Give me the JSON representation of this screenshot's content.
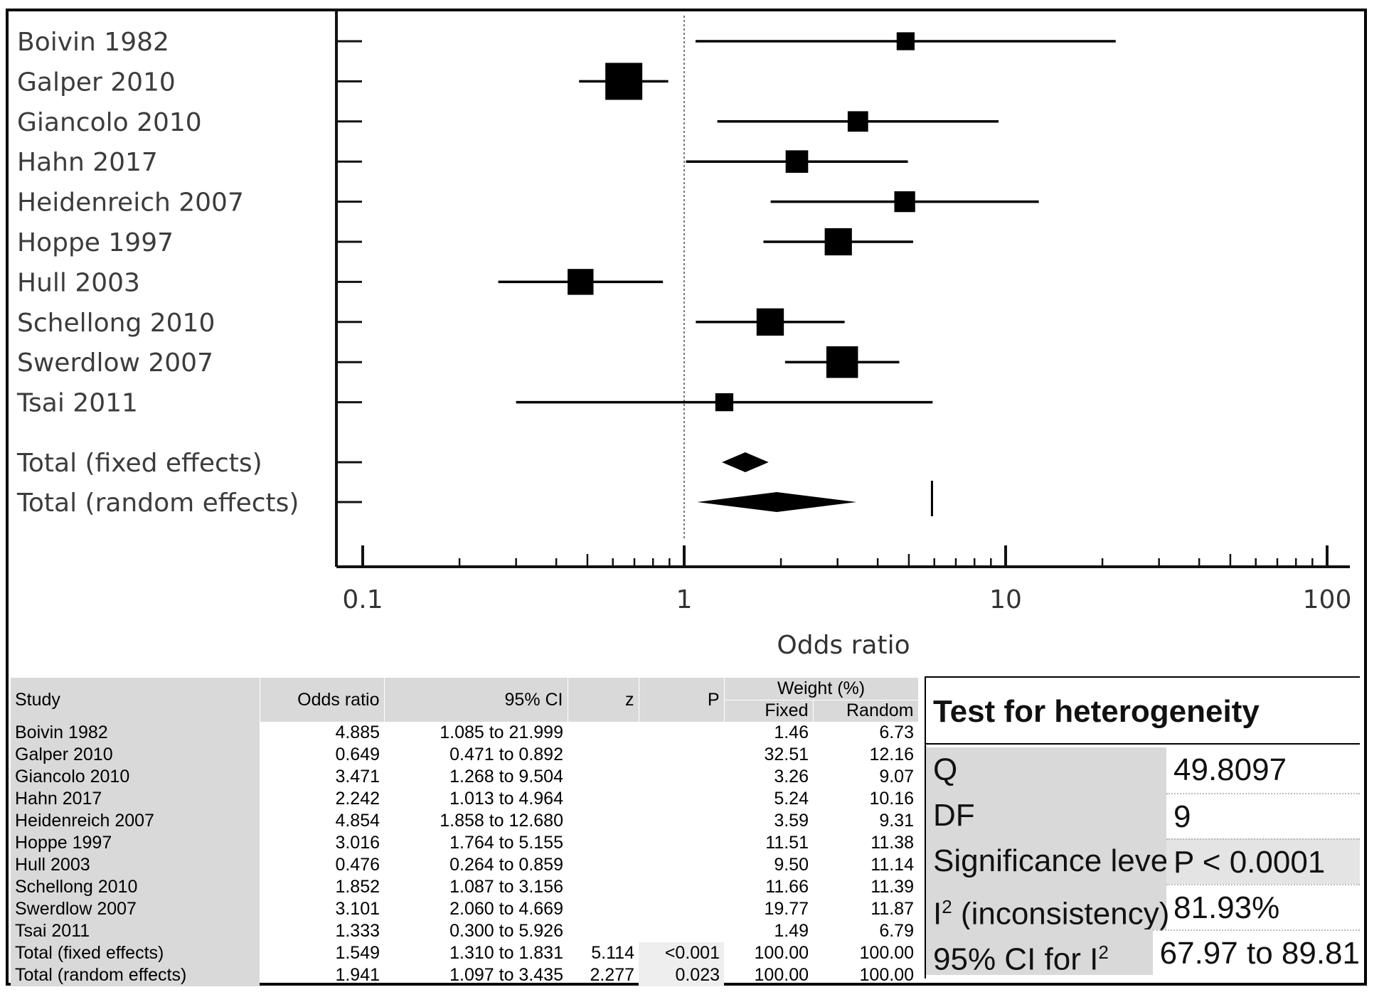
{
  "chart_data": {
    "type": "forest",
    "x_scale": "log",
    "xlabel": "Odds ratio",
    "xlim": [
      0.1,
      100
    ],
    "x_ticks": [
      0.1,
      1,
      10,
      100
    ],
    "x_tick_labels": [
      "0.1",
      "1",
      "10",
      "100"
    ],
    "reference_line": 1,
    "studies": [
      {
        "label": "Boivin 1982",
        "or": 4.885,
        "lo": 1.085,
        "hi": 21.999,
        "weight_fixed": 1.46
      },
      {
        "label": "Galper 2010",
        "or": 0.649,
        "lo": 0.471,
        "hi": 0.892,
        "weight_fixed": 32.51
      },
      {
        "label": "Giancolo 2010",
        "or": 3.471,
        "lo": 1.268,
        "hi": 9.504,
        "weight_fixed": 3.26
      },
      {
        "label": "Hahn 2017",
        "or": 2.242,
        "lo": 1.013,
        "hi": 4.964,
        "weight_fixed": 5.24
      },
      {
        "label": "Heidenreich 2007",
        "or": 4.854,
        "lo": 1.858,
        "hi": 12.68,
        "weight_fixed": 3.59
      },
      {
        "label": "Hoppe 1997",
        "or": 3.016,
        "lo": 1.764,
        "hi": 5.155,
        "weight_fixed": 11.51
      },
      {
        "label": "Hull 2003",
        "or": 0.476,
        "lo": 0.264,
        "hi": 0.859,
        "weight_fixed": 9.5
      },
      {
        "label": "Schellong 2010",
        "or": 1.852,
        "lo": 1.087,
        "hi": 3.156,
        "weight_fixed": 11.66
      },
      {
        "label": "Swerdlow 2007",
        "or": 3.101,
        "lo": 2.06,
        "hi": 4.669,
        "weight_fixed": 19.77
      },
      {
        "label": "Tsai 2011",
        "or": 1.333,
        "lo": 0.3,
        "hi": 5.926,
        "weight_fixed": 1.49
      }
    ],
    "totals": [
      {
        "label": "Total (fixed effects)",
        "or": 1.549,
        "lo": 1.31,
        "hi": 1.831
      },
      {
        "label": "Total (random effects)",
        "or": 1.941,
        "lo": 1.097,
        "hi": 3.435,
        "marker_at": 5.9
      }
    ]
  },
  "table": {
    "headers": {
      "study": "Study",
      "or": "Odds ratio",
      "ci": "95% CI",
      "z": "z",
      "p": "P",
      "weight": "Weight (%)",
      "fixed": "Fixed",
      "random": "Random"
    },
    "rows": [
      {
        "study": "Boivin 1982",
        "or": "4.885",
        "ci": "1.085 to 21.999",
        "z": "",
        "p": "",
        "fixed": "1.46",
        "random": "6.73"
      },
      {
        "study": "Galper 2010",
        "or": "0.649",
        "ci": "0.471 to 0.892",
        "z": "",
        "p": "",
        "fixed": "32.51",
        "random": "12.16"
      },
      {
        "study": "Giancolo 2010",
        "or": "3.471",
        "ci": "1.268 to 9.504",
        "z": "",
        "p": "",
        "fixed": "3.26",
        "random": "9.07"
      },
      {
        "study": "Hahn 2017",
        "or": "2.242",
        "ci": "1.013 to 4.964",
        "z": "",
        "p": "",
        "fixed": "5.24",
        "random": "10.16"
      },
      {
        "study": "Heidenreich 2007",
        "or": "4.854",
        "ci": "1.858 to 12.680",
        "z": "",
        "p": "",
        "fixed": "3.59",
        "random": "9.31"
      },
      {
        "study": "Hoppe 1997",
        "or": "3.016",
        "ci": "1.764 to 5.155",
        "z": "",
        "p": "",
        "fixed": "11.51",
        "random": "11.38"
      },
      {
        "study": "Hull 2003",
        "or": "0.476",
        "ci": "0.264 to 0.859",
        "z": "",
        "p": "",
        "fixed": "9.50",
        "random": "11.14"
      },
      {
        "study": "Schellong 2010",
        "or": "1.852",
        "ci": "1.087 to 3.156",
        "z": "",
        "p": "",
        "fixed": "11.66",
        "random": "11.39"
      },
      {
        "study": "Swerdlow 2007",
        "or": "3.101",
        "ci": "2.060 to 4.669",
        "z": "",
        "p": "",
        "fixed": "19.77",
        "random": "11.87"
      },
      {
        "study": "Tsai 2011",
        "or": "1.333",
        "ci": "0.300 to 5.926",
        "z": "",
        "p": "",
        "fixed": "1.49",
        "random": "6.79"
      },
      {
        "study": "Total (fixed effects)",
        "or": "1.549",
        "ci": "1.310 to 1.831",
        "z": "5.114",
        "p": "<0.001",
        "fixed": "100.00",
        "random": "100.00"
      },
      {
        "study": "Total (random effects)",
        "or": "1.941",
        "ci": "1.097 to 3.435",
        "z": "2.277",
        "p": "0.023",
        "fixed": "100.00",
        "random": "100.00"
      }
    ]
  },
  "heterogeneity": {
    "title": "Test for heterogeneity",
    "q_label": "Q",
    "q_value": "49.8097",
    "df_label": "DF",
    "df_value": "9",
    "sig_label": "Significance level",
    "sig_value": "P < 0.0001",
    "i2_label_prefix": "I",
    "i2_label_sup": "2",
    "i2_label_suffix": " (inconsistency)",
    "i2_value": "81.93%",
    "ci_label_prefix": "95% CI for I",
    "ci_label_sup": "2",
    "ci_value": "67.97 to 89.81"
  }
}
